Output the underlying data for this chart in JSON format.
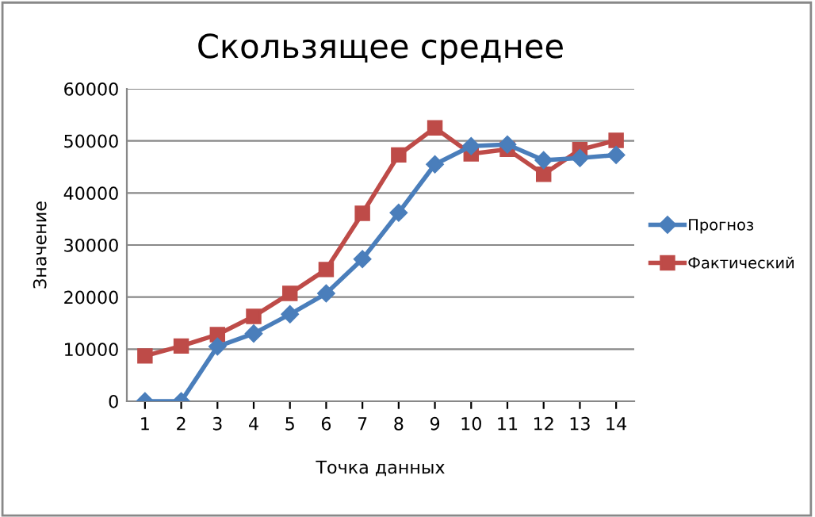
{
  "chart_data": {
    "type": "line",
    "title": "Скользящее среднее",
    "xlabel": "Точка данных",
    "ylabel": "Значение",
    "categories": [
      "1",
      "2",
      "3",
      "4",
      "5",
      "6",
      "7",
      "8",
      "9",
      "10",
      "11",
      "12",
      "13",
      "14"
    ],
    "series": [
      {
        "name": "Прогноз",
        "color": "#4a7ebb",
        "marker": "diamond",
        "values": [
          0,
          0,
          10500,
          13000,
          16700,
          20700,
          27300,
          36200,
          45500,
          49000,
          49300,
          46300,
          46700,
          47300
        ]
      },
      {
        "name": "Фактический",
        "color": "#be4b48",
        "marker": "square",
        "values": [
          8700,
          10600,
          12800,
          16300,
          20700,
          25300,
          36100,
          47300,
          52500,
          47500,
          48400,
          43600,
          48300,
          50100
        ]
      }
    ],
    "ylim": [
      0,
      60000
    ],
    "yticks": [
      0,
      10000,
      20000,
      30000,
      40000,
      50000,
      60000
    ],
    "grid": "y",
    "legend": "right"
  }
}
